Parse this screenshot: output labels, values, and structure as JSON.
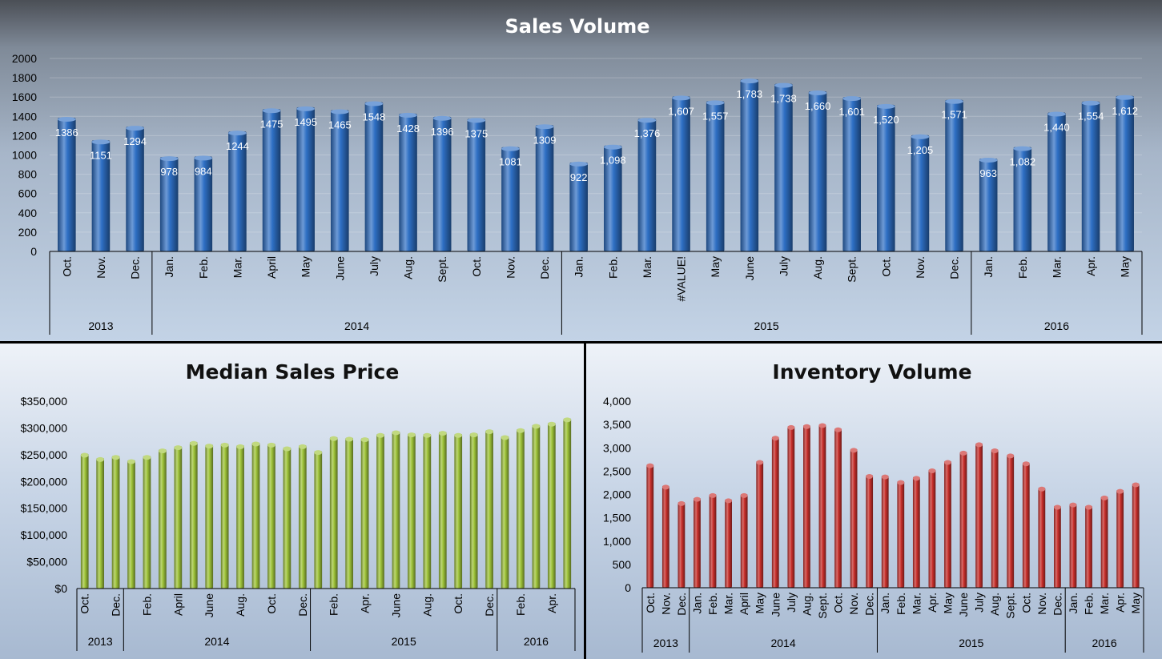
{
  "chart_data": [
    {
      "type": "bar",
      "title": "Sales Volume",
      "xlabel": "",
      "ylabel": "",
      "ylim": [
        0,
        2000
      ],
      "yticks": [
        "2000",
        "1800",
        "1600",
        "1400",
        "1200",
        "1000",
        "800",
        "600",
        "400",
        "200",
        "0"
      ],
      "categories": [
        "Oct.",
        "Nov.",
        "Dec.",
        "Jan.",
        "Feb.",
        "Mar.",
        "April",
        "May",
        "June",
        "July",
        "Aug.",
        "Sept.",
        "Oct.",
        "Nov.",
        "Dec.",
        "Jan.",
        "Feb.",
        "Mar.",
        "#VALUE!",
        "May",
        "June",
        "July",
        "Aug.",
        "Sept.",
        "Oct.",
        "Nov.",
        "Dec.",
        "Jan.",
        "Feb.",
        "Mar.",
        "Apr.",
        "May"
      ],
      "values": [
        1386,
        1151,
        1294,
        978,
        984,
        1244,
        1475,
        1495,
        1465,
        1548,
        1428,
        1396,
        1375,
        1081,
        1309,
        922,
        1098,
        1376,
        1607,
        1557,
        1783,
        1738,
        1660,
        1601,
        1520,
        1205,
        1571,
        963,
        1082,
        1440,
        1554,
        1612
      ],
      "data_labels": [
        "1386",
        "1151",
        "1294",
        "978",
        "984",
        "1244",
        "1475",
        "1495",
        "1465",
        "1548",
        "1428",
        "1396",
        "1375",
        "1081",
        "1309",
        "922",
        "1,098",
        "1,376",
        "1,607",
        "1,557",
        "1,783",
        "1,738",
        "1,660",
        "1,601",
        "1,520",
        "1,205",
        "1,571",
        "963",
        "1,082",
        "1,440",
        "1,554",
        "1,612"
      ],
      "year_groups": [
        {
          "label": "2013",
          "count": 3
        },
        {
          "label": "2014",
          "count": 12
        },
        {
          "label": "2015",
          "count": 12
        },
        {
          "label": "2016",
          "count": 5
        }
      ],
      "grid": true,
      "color": "#2e6fc4"
    },
    {
      "type": "bar",
      "title": "Median Sales Price",
      "xlabel": "",
      "ylabel": "",
      "ylim": [
        0,
        350000
      ],
      "yticks": [
        "$350,000",
        "$300,000",
        "$250,000",
        "$200,000",
        "$150,000",
        "$100,000",
        "$50,000",
        "$0"
      ],
      "categories": [
        "Oct.",
        "Nov.",
        "Dec.",
        "Jan.",
        "Feb.",
        "Mar.",
        "April",
        "May",
        "June",
        "July",
        "Aug.",
        "Sept.",
        "Oct.",
        "Nov.",
        "Dec.",
        "Jan.",
        "Feb.",
        "Mar.",
        "Apr.",
        "May",
        "June",
        "July",
        "Aug.",
        "Sept.",
        "Oct.",
        "Nov.",
        "Dec.",
        "Jan.",
        "Feb.",
        "Mar.",
        "Apr.",
        "May"
      ],
      "shown_tick_labels": [
        "Oct.",
        "",
        "Dec.",
        "",
        "Feb.",
        "",
        "April",
        "",
        "June",
        "",
        "Aug.",
        "",
        "Oct.",
        "",
        "Dec.",
        "",
        "Feb.",
        "",
        "Apr.",
        "",
        "June",
        "",
        "Aug.",
        "",
        "Oct.",
        "",
        "Dec.",
        "",
        "Feb.",
        "",
        "Apr.",
        ""
      ],
      "values": [
        252000,
        244000,
        248000,
        240000,
        248000,
        260000,
        266000,
        274000,
        269000,
        271000,
        268000,
        273000,
        271000,
        264000,
        268000,
        257000,
        283000,
        282000,
        281000,
        289000,
        294000,
        290000,
        289000,
        293000,
        289000,
        290000,
        296000,
        285000,
        298000,
        306000,
        310000,
        318000
      ],
      "year_groups": [
        {
          "label": "2013",
          "count": 3
        },
        {
          "label": "2014",
          "count": 12
        },
        {
          "label": "2015",
          "count": 12
        },
        {
          "label": "2016",
          "count": 5
        }
      ],
      "grid": false,
      "color": "#9fc43a"
    },
    {
      "type": "bar",
      "title": "Inventory Volume",
      "xlabel": "",
      "ylabel": "",
      "ylim": [
        0,
        4000
      ],
      "yticks": [
        "4,000",
        "3,500",
        "3,000",
        "2,500",
        "2,000",
        "1,500",
        "1,000",
        "500",
        "0"
      ],
      "categories": [
        "Oct.",
        "Nov.",
        "Dec.",
        "Jan.",
        "Feb.",
        "Mar.",
        "April",
        "May",
        "June",
        "July",
        "Aug.",
        "Sept.",
        "Oct.",
        "Nov.",
        "Dec.",
        "Jan.",
        "Feb.",
        "Mar.",
        "Apr.",
        "May",
        "June",
        "July",
        "Aug.",
        "Sept.",
        "Oct.",
        "Nov.",
        "Dec.",
        "Jan.",
        "Feb.",
        "Mar.",
        "Apr.",
        "May"
      ],
      "values": [
        2650,
        2190,
        1840,
        1930,
        2010,
        1900,
        2010,
        2720,
        3240,
        3470,
        3490,
        3510,
        3420,
        2980,
        2420,
        2410,
        2290,
        2380,
        2540,
        2720,
        2920,
        3100,
        2970,
        2860,
        2690,
        2150,
        1760,
        1810,
        1760,
        1960,
        2100,
        2240
      ],
      "year_groups": [
        {
          "label": "2013",
          "count": 3
        },
        {
          "label": "2014",
          "count": 12
        },
        {
          "label": "2015",
          "count": 12
        },
        {
          "label": "2016",
          "count": 5
        }
      ],
      "grid": false,
      "color": "#c9302c"
    }
  ]
}
